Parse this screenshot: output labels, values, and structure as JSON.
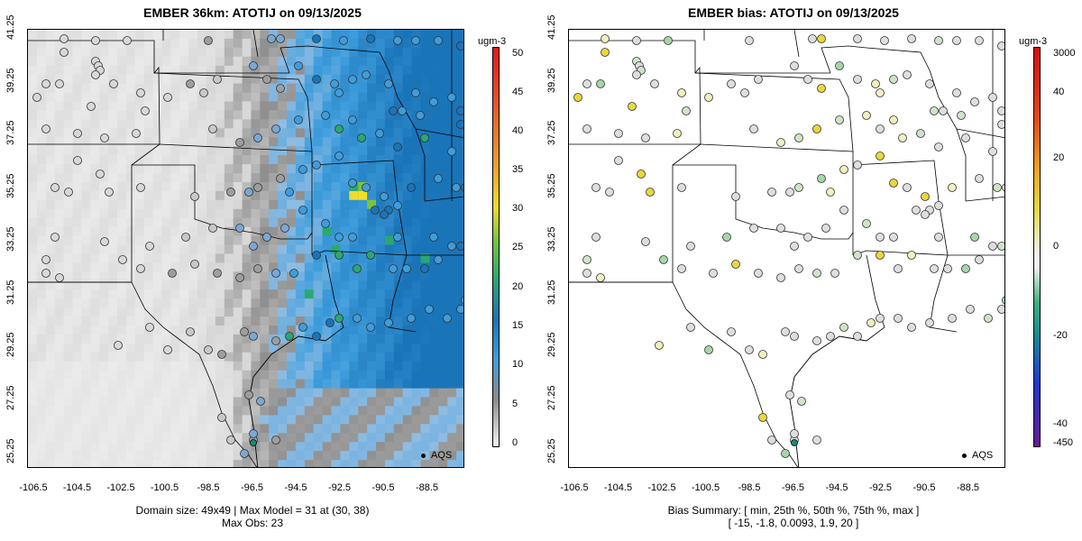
{
  "left": {
    "title": "EMBER 36km: ATOTIJ on 09/13/2025",
    "colorbar_unit": "ugm-3",
    "colorbar_labels": [
      "50",
      "45",
      "40",
      "35",
      "30",
      "25",
      "20",
      "15",
      "10",
      "5",
      "0"
    ],
    "legend": "AQS",
    "footer_line1": "Domain size: 49x49 | Max Model = 31 at (30, 38)",
    "footer_line2": "Max Obs: 23"
  },
  "right": {
    "title": "EMBER bias: ATOTIJ on 09/13/2025",
    "colorbar_unit": "ugm-3",
    "colorbar_labels": [
      "3000",
      "40",
      "20",
      "0",
      "-20",
      "-40",
      "-450"
    ],
    "legend": "AQS",
    "footer_line1": "Bias Summary: [ min, 25th %, 50th %, 75th %, max ]",
    "footer_line2": "[ -15,   -1.8,   0.0093,   1.9,   20 ]"
  },
  "axes": {
    "x_ticks": [
      "-106.5",
      "-104.5",
      "-102.5",
      "-100.5",
      "-98.5",
      "-96.5",
      "-94.5",
      "-92.5",
      "-90.5",
      "-88.5"
    ],
    "y_ticks": [
      "41.25",
      "39.25",
      "37.25",
      "35.25",
      "33.25",
      "31.25",
      "29.25",
      "27.25",
      "25.25"
    ]
  },
  "colors": {
    "map_grey_light": "#e4e4e4",
    "map_grey_mid": "#a8a8a8",
    "map_blue": "#3e9ddc",
    "map_blue_dark": "#1a74b8",
    "map_green": "#2aa870",
    "map_yellow": "#f0e020",
    "state_line": "#000000"
  },
  "chart_data": [
    {
      "type": "heatmap",
      "title": "EMBER 36km: ATOTIJ on 09/13/2025",
      "colorbar_range": [
        0,
        50
      ],
      "colorbar_unit": "ugm-3",
      "xlim": [
        -107.5,
        -88
      ],
      "ylim": [
        25,
        41.5
      ],
      "max_model": 31,
      "max_model_cell": [
        30,
        38
      ],
      "max_obs": 23,
      "domain_size": "49x49"
    },
    {
      "type": "scatter",
      "title": "EMBER bias: ATOTIJ on 09/13/2025",
      "colorbar_range": [
        -450,
        3000
      ],
      "colorbar_unit": "ugm-3",
      "bias_summary": {
        "min": -15,
        "p25": -1.8,
        "p50": 0.0093,
        "p75": 1.9,
        "max": 20
      }
    }
  ]
}
